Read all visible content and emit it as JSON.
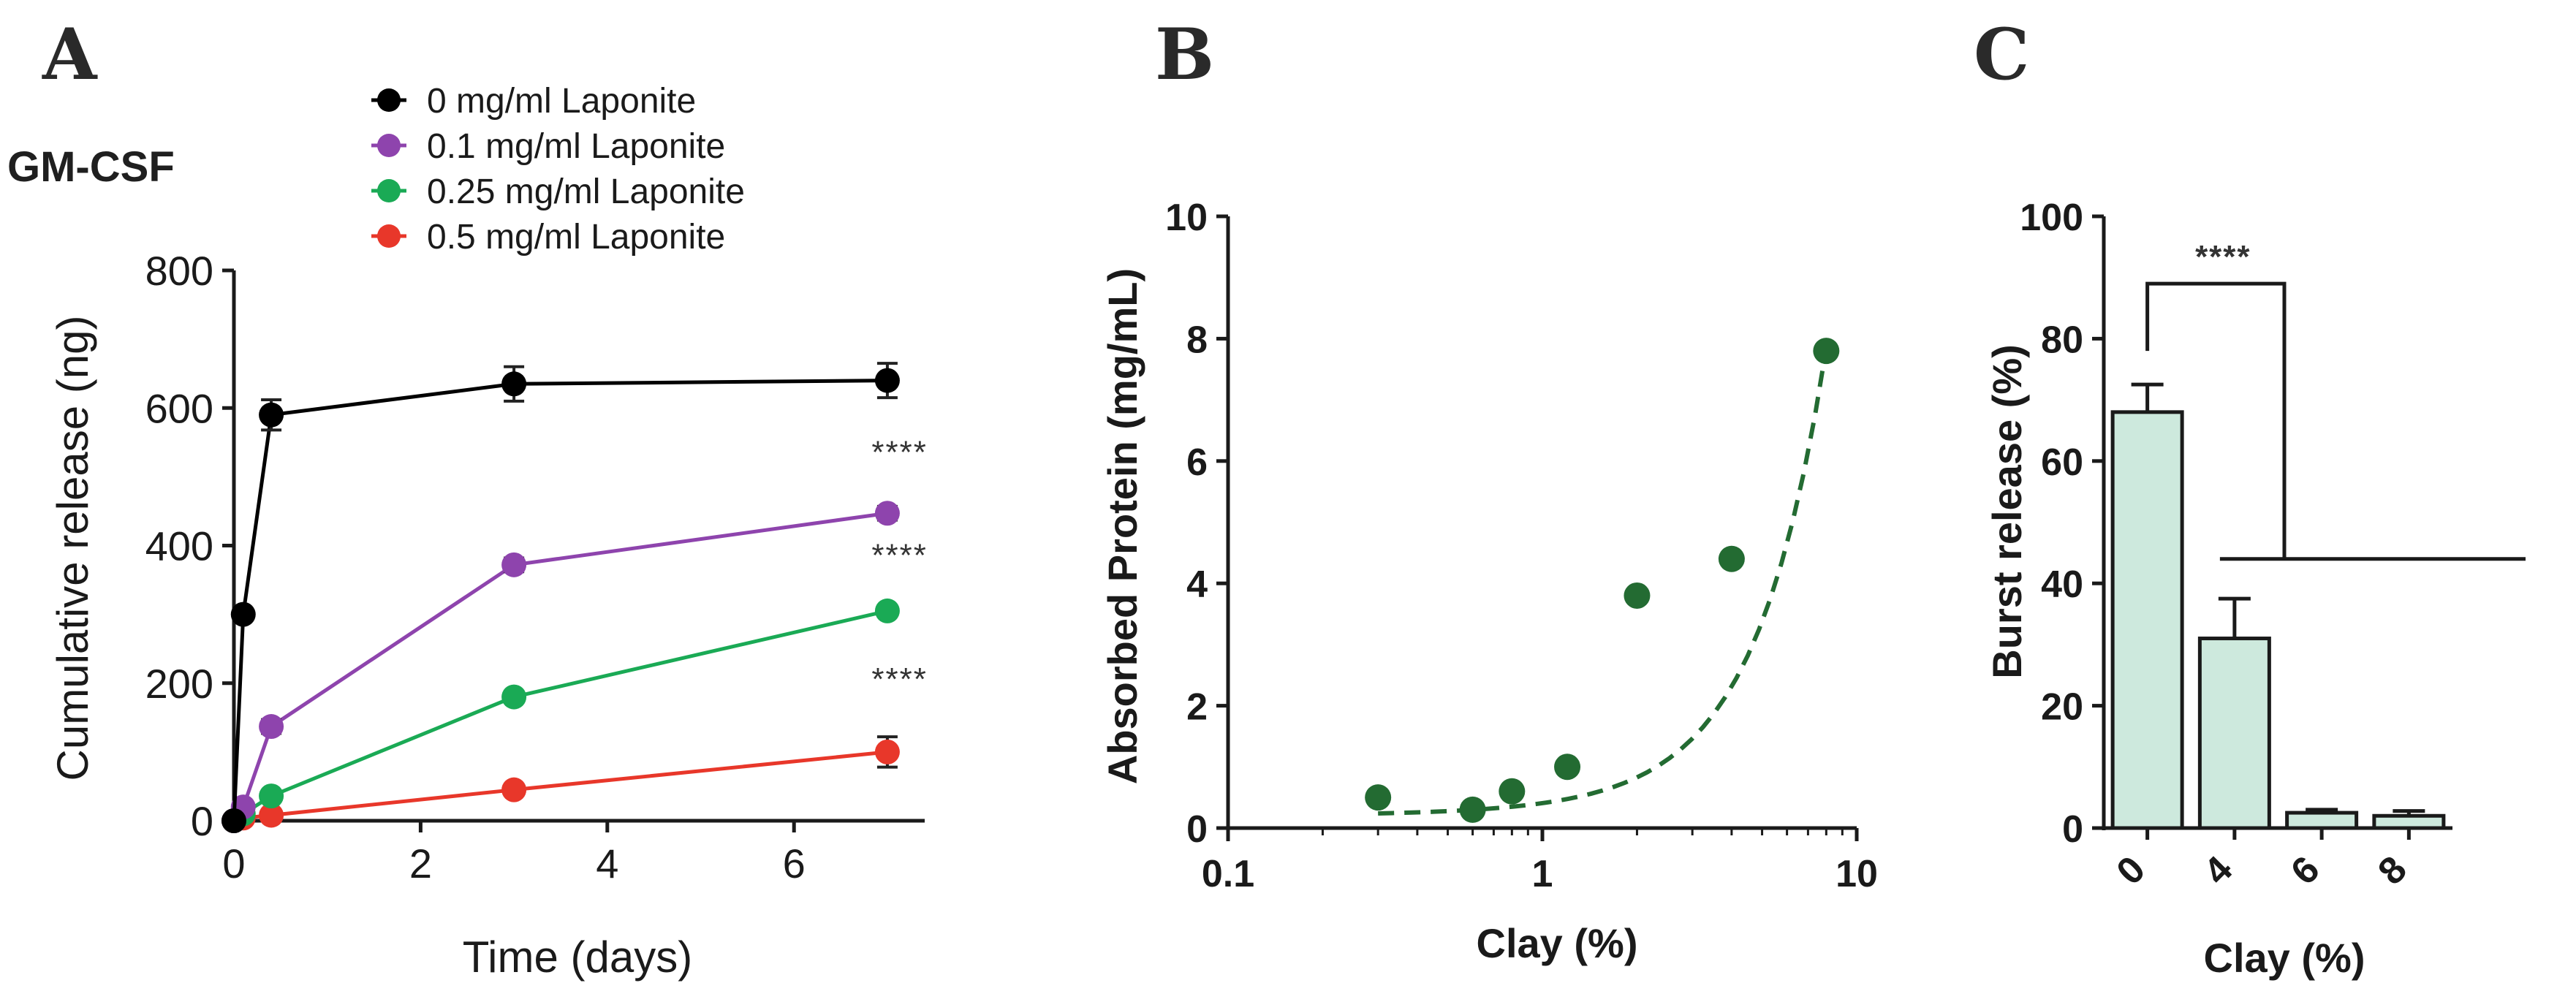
{
  "chart_data": [
    {
      "panel": "A",
      "type": "line",
      "title": "GM-CSF",
      "xlabel": "Time (days)",
      "ylabel": "Cumulative release (ng)",
      "xlim": [
        0,
        7.4
      ],
      "ylim": [
        0,
        800
      ],
      "xticks": [
        "0",
        "2",
        "4",
        "6"
      ],
      "yticks": [
        "0",
        "200",
        "400",
        "600",
        "800"
      ],
      "series": [
        {
          "name": "0 mg/ml Laponite",
          "color": "#000000",
          "x": [
            0,
            0.1,
            0.4,
            3,
            7
          ],
          "y": [
            0,
            300,
            590,
            635,
            640
          ],
          "err": [
            0,
            0,
            22,
            25,
            25
          ]
        },
        {
          "name": "0.1 mg/ml Laponite",
          "color": "#8e44ad",
          "x": [
            0,
            0.1,
            0.4,
            3,
            7
          ],
          "y": [
            0,
            20,
            137,
            372,
            447
          ],
          "err": [
            0,
            0,
            10,
            10,
            10
          ]
        },
        {
          "name": "0.25 mg/ml Laponite",
          "color": "#1aaa55",
          "x": [
            0,
            0.1,
            0.4,
            3,
            7
          ],
          "y": [
            0,
            10,
            36,
            180,
            305
          ],
          "err": [
            0,
            0,
            5,
            8,
            8
          ]
        },
        {
          "name": "0.5 mg/ml Laponite",
          "color": "#e8372a",
          "x": [
            0,
            0.1,
            0.4,
            3,
            7
          ],
          "y": [
            0,
            4,
            8,
            45,
            100
          ],
          "err": [
            0,
            0,
            3,
            8,
            22
          ]
        }
      ],
      "annotations": [
        "****",
        "****",
        "****"
      ]
    },
    {
      "panel": "B",
      "type": "scatter",
      "xlabel": "Clay (%)",
      "ylabel": "Absorbed Protein (mg/mL)",
      "xscale": "log",
      "xlim": [
        0.1,
        10
      ],
      "ylim": [
        0,
        10
      ],
      "xticks": [
        "0.1",
        "1",
        "10"
      ],
      "yticks": [
        "0",
        "2",
        "4",
        "6",
        "8",
        "10"
      ],
      "color": "#236b32",
      "x": [
        0.3,
        0.6,
        0.8,
        1.2,
        2,
        4,
        8
      ],
      "y": [
        0.5,
        0.3,
        0.6,
        1.0,
        3.8,
        4.4,
        7.8
      ],
      "fit": "dashed trend line"
    },
    {
      "panel": "C",
      "type": "bar",
      "xlabel": "Clay (%)",
      "ylabel": "Burst release (%)",
      "categories": [
        "0",
        "4",
        "6",
        "8"
      ],
      "values": [
        68,
        31,
        2.5,
        2
      ],
      "err": [
        4.5,
        6.5,
        0.5,
        0.8
      ],
      "ylim": [
        0,
        100
      ],
      "yticks": [
        "0",
        "20",
        "40",
        "60",
        "80",
        "100"
      ],
      "bar_color": "#cde9dd",
      "annotation": "****"
    }
  ]
}
